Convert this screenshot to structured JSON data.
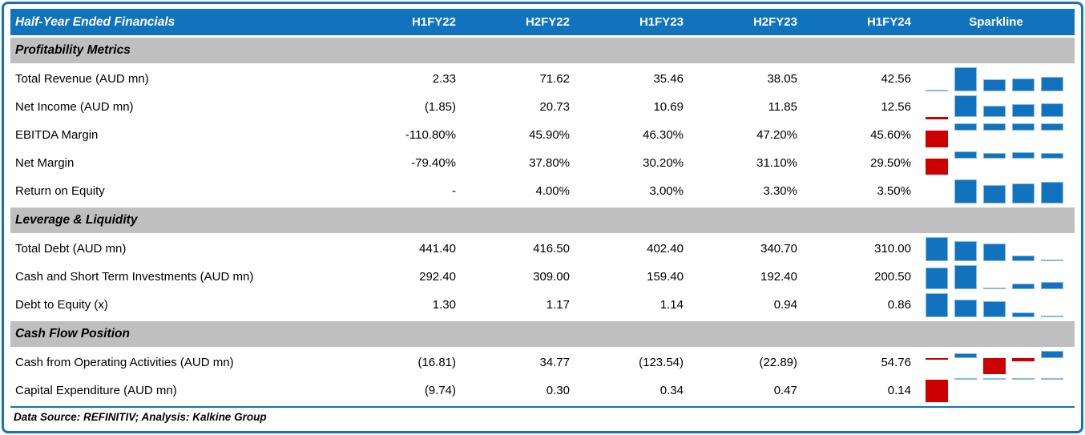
{
  "colors": {
    "header_bg": "#1173BE",
    "header_text": "#FFFFFF",
    "section_bg": "#BFBFBF",
    "bar_positive": "#1173BE",
    "bar_positive_light": "#8BB9E3",
    "bar_negative": "#CC0000",
    "outer_border": "#1173BE",
    "body_text": "#000000"
  },
  "footer": {
    "text": "Data Source: REFINITIV; Analysis: Kalkine Group"
  },
  "chart_data": {
    "type": "table",
    "title": "Half-Year Ended Financials",
    "columns": [
      "H1FY22",
      "H2FY22",
      "H1FY23",
      "H2FY23",
      "H1FY24"
    ],
    "sparkline_header": "Sparkline",
    "sparkline_type": "bar",
    "sections": [
      {
        "label": "Profitability Metrics",
        "rows": [
          {
            "label": "Total Revenue (AUD mn)",
            "display": [
              "2.33",
              "71.62",
              "35.46",
              "38.05",
              "42.56"
            ],
            "values": [
              2.33,
              71.62,
              35.46,
              38.05,
              42.56
            ]
          },
          {
            "label": "Net Income (AUD mn)",
            "display": [
              "(1.85)",
              "20.73",
              "10.69",
              "11.85",
              "12.56"
            ],
            "values": [
              -1.85,
              20.73,
              10.69,
              11.85,
              12.56
            ]
          },
          {
            "label": "EBITDA Margin",
            "display": [
              "-110.80%",
              "45.90%",
              "46.30%",
              "47.20%",
              "45.60%"
            ],
            "values": [
              -110.8,
              45.9,
              46.3,
              47.2,
              45.6
            ]
          },
          {
            "label": "Net Margin",
            "display": [
              "-79.40%",
              "37.80%",
              "30.20%",
              "31.10%",
              "29.50%"
            ],
            "values": [
              -79.4,
              37.8,
              30.2,
              31.1,
              29.5
            ]
          },
          {
            "label": "Return on Equity",
            "display": [
              "-",
              "4.00%",
              "3.00%",
              "3.30%",
              "3.50%"
            ],
            "values": [
              null,
              4.0,
              3.0,
              3.3,
              3.5
            ]
          }
        ]
      },
      {
        "label": "Leverage & Liquidity",
        "rows": [
          {
            "label": "Total Debt (AUD mn)",
            "display": [
              "441.40",
              "416.50",
              "402.40",
              "340.70",
              "310.00"
            ],
            "values": [
              441.4,
              416.5,
              402.4,
              340.7,
              310.0
            ]
          },
          {
            "label": "Cash and Short Term Investments (AUD mn)",
            "display": [
              "292.40",
              "309.00",
              "159.40",
              "192.40",
              "200.50"
            ],
            "values": [
              292.4,
              309.0,
              159.4,
              192.4,
              200.5
            ]
          },
          {
            "label": "Debt to Equity (x)",
            "display": [
              "1.30",
              "1.17",
              "1.14",
              "0.94",
              "0.86"
            ],
            "values": [
              1.3,
              1.17,
              1.14,
              0.94,
              0.86
            ]
          }
        ]
      },
      {
        "label": "Cash Flow Position",
        "rows": [
          {
            "label": "Cash from Operating Activities (AUD mn)",
            "display": [
              "(16.81)",
              "34.77",
              "(123.54)",
              "(22.89)",
              "54.76"
            ],
            "values": [
              -16.81,
              34.77,
              -123.54,
              -22.89,
              54.76
            ]
          },
          {
            "label": "Capital Expenditure (AUD mn)",
            "display": [
              "(9.74)",
              "0.30",
              "0.34",
              "0.47",
              "0.14"
            ],
            "values": [
              -9.74,
              0.3,
              0.34,
              0.47,
              0.14
            ]
          }
        ]
      }
    ]
  }
}
